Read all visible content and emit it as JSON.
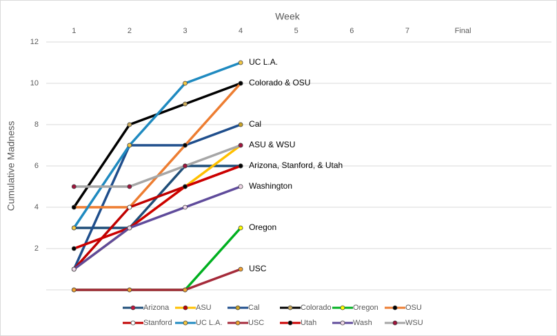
{
  "chart_data": {
    "type": "line",
    "x_axis_label": "Week",
    "y_axis_label": "Cumulative Madness",
    "categories": [
      "1",
      "2",
      "3",
      "4",
      "5",
      "6",
      "7",
      "Final"
    ],
    "ylim": [
      0,
      12
    ],
    "yticks": [
      2,
      4,
      6,
      8,
      10,
      12
    ],
    "grid": true,
    "series": [
      {
        "name": "Arizona",
        "color": "#1f4e79",
        "marker_color": "#c0143c",
        "values": [
          3,
          3,
          6,
          6,
          null,
          null,
          null,
          null
        ]
      },
      {
        "name": "ASU",
        "color": "#ffc000",
        "marker_color": "#c00000",
        "values": [
          1,
          3,
          5,
          7,
          null,
          null,
          null,
          null
        ]
      },
      {
        "name": "Cal",
        "color": "#1f4e8c",
        "marker_color": "#c9a227",
        "values": [
          1,
          7,
          7,
          8,
          null,
          null,
          null,
          null
        ]
      },
      {
        "name": "Colorado",
        "color": "#000000",
        "marker_color": "#c9a95a",
        "values": [
          4,
          8,
          9,
          10,
          null,
          null,
          null,
          null
        ]
      },
      {
        "name": "Oregon",
        "color": "#00b020",
        "marker_color": "#ffff00",
        "values": [
          0,
          0,
          0,
          3,
          null,
          null,
          null,
          null
        ]
      },
      {
        "name": "OSU",
        "color": "#ed7d31",
        "marker_color": "#000000",
        "values": [
          4,
          4,
          7,
          10,
          null,
          null,
          null,
          null
        ]
      },
      {
        "name": "Stanford",
        "color": "#c00000",
        "marker_color": "#ffffff",
        "values": [
          1,
          4,
          5,
          6,
          null,
          null,
          null,
          null
        ]
      },
      {
        "name": "UC L.A.",
        "color": "#1f8ac0",
        "marker_color": "#f2c744",
        "values": [
          3,
          7,
          10,
          11,
          null,
          null,
          null,
          null
        ]
      },
      {
        "name": "USC",
        "color": "#a52a3a",
        "marker_color": "#f0a030",
        "values": [
          0,
          0,
          0,
          1,
          null,
          null,
          null,
          null
        ]
      },
      {
        "name": "Utah",
        "color": "#cc0000",
        "marker_color": "#000000",
        "values": [
          2,
          3,
          5,
          6,
          null,
          null,
          null,
          null
        ]
      },
      {
        "name": "Wash",
        "color": "#5f4b9b",
        "marker_color": "#f0d8e8",
        "values": [
          1,
          3,
          4,
          5,
          null,
          null,
          null,
          null
        ]
      },
      {
        "name": "WSU",
        "color": "#a6a6a6",
        "marker_color": "#a0143c",
        "values": [
          5,
          5,
          6,
          7,
          null,
          null,
          null,
          null
        ]
      }
    ],
    "annotations": [
      {
        "text": "UC L.A.",
        "y": 11
      },
      {
        "text": "Colorado & OSU",
        "y": 10
      },
      {
        "text": "Cal",
        "y": 8
      },
      {
        "text": "ASU & WSU",
        "y": 7
      },
      {
        "text": "Arizona, Stanford, & Utah",
        "y": 6
      },
      {
        "text": "Washington",
        "y": 5
      },
      {
        "text": "Oregon",
        "y": 3
      },
      {
        "text": "USC",
        "y": 1
      }
    ]
  }
}
